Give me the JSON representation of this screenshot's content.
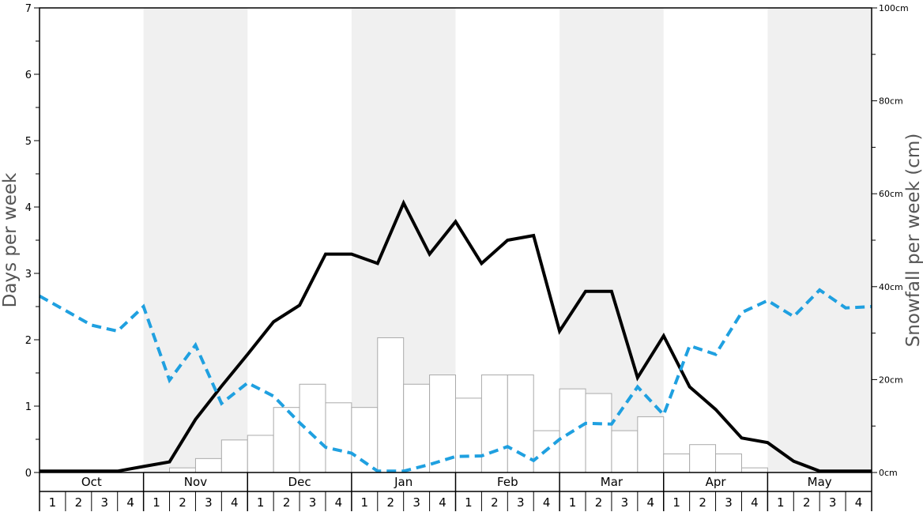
{
  "chart_data": {
    "type": "bar+line",
    "title": "",
    "y_left": {
      "label": "Days per week",
      "range": [
        0,
        7
      ],
      "ticks": [
        "0",
        "1",
        "2",
        "3",
        "4",
        "5",
        "6",
        "7"
      ]
    },
    "y_right": {
      "label": "Snowfall per week (cm)",
      "range": [
        0,
        100
      ],
      "ticks": [
        "0cm",
        "20cm",
        "40cm",
        "60cm",
        "80cm",
        "100cm"
      ]
    },
    "months": [
      "Oct",
      "Nov",
      "Dec",
      "Jan",
      "Feb",
      "Mar",
      "Apr",
      "May"
    ],
    "week_labels": [
      "1",
      "2",
      "3",
      "4"
    ],
    "shaded_months": [
      1,
      3,
      5,
      7
    ],
    "colors": {
      "snowfall_bars": "#ffffff",
      "bar_border": "#aaaaaa",
      "days_line": "#000000",
      "dashed_line": "#1fa0e0",
      "shading": "#f0f0f0"
    },
    "series": [
      {
        "kind": "bar",
        "axis": "right",
        "values": [
          0,
          0,
          0,
          0,
          0,
          1,
          3,
          7,
          8,
          14,
          19,
          15,
          14,
          29,
          19,
          21,
          16,
          21,
          21,
          9,
          18,
          17,
          9,
          12,
          4,
          6,
          4,
          1,
          0,
          0,
          0,
          0
        ]
      },
      {
        "kind": "line",
        "style": "solid",
        "axis": "left",
        "values": [
          0.02,
          0.02,
          0.02,
          0.02,
          0.09,
          0.16,
          0.8,
          1.3,
          1.78,
          2.27,
          2.52,
          3.29,
          3.29,
          3.15,
          4.06,
          3.29,
          3.78,
          3.15,
          3.5,
          3.57,
          2.13,
          2.73,
          2.73,
          1.43,
          2.06,
          1.29,
          0.95,
          0.52,
          0.45,
          0.17,
          0.02,
          0.02,
          0.02
        ]
      },
      {
        "kind": "line",
        "style": "dashed",
        "axis": "left",
        "values": [
          2.66,
          2.44,
          2.22,
          2.13,
          2.5,
          1.39,
          1.92,
          1.04,
          1.35,
          1.15,
          0.75,
          0.38,
          0.29,
          0.02,
          0.02,
          0.12,
          0.24,
          0.25,
          0.39,
          0.18,
          0.5,
          0.74,
          0.73,
          1.29,
          0.87,
          1.91,
          1.78,
          2.41,
          2.59,
          2.35,
          2.75,
          2.48,
          2.5
        ]
      }
    ]
  }
}
